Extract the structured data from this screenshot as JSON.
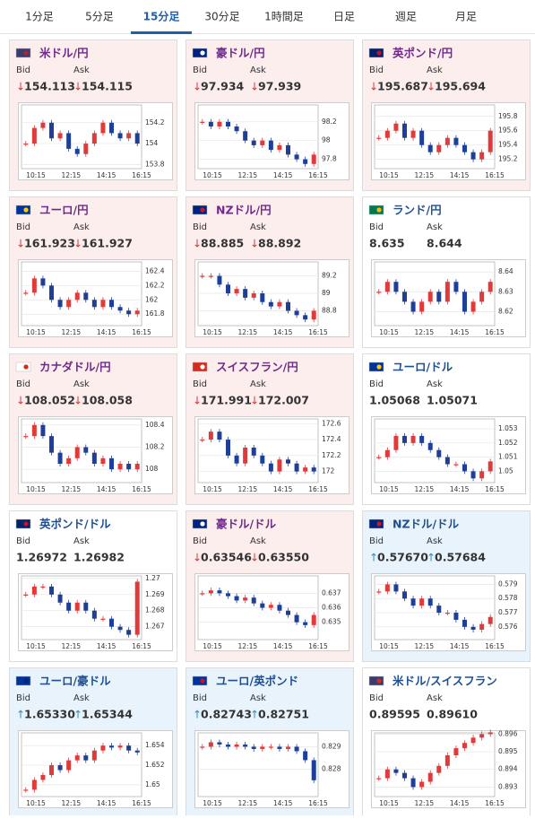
{
  "tabs": {
    "items": [
      "1分足",
      "5分足",
      "15分足",
      "30分足",
      "1時間足",
      "日足",
      "週足",
      "月足"
    ],
    "active": 2
  },
  "labels": {
    "bid": "Bid",
    "ask": "Ask",
    "down": "↓",
    "up": "↑"
  },
  "xticks": [
    "10:15",
    "12:15",
    "14:15",
    "16:15"
  ],
  "cards": [
    {
      "name": "米ドル/円",
      "bid": "154.113",
      "ask": "154.115",
      "trend": "down",
      "flag": [
        "#3c3b6e",
        "#b22234"
      ],
      "ylim": [
        153.76,
        154.37
      ],
      "yticks": [
        154.2,
        154,
        153.8
      ],
      "values": [
        154.0,
        154.15,
        154.2,
        154.05,
        154.1,
        153.95,
        153.9,
        154.0,
        154.1,
        154.2,
        154.1,
        154.05,
        154.1,
        154.0
      ]
    },
    {
      "name": "豪ドル/円",
      "bid": "97.934",
      "ask": "97.939",
      "trend": "down",
      "flag": [
        "#00247d",
        "#ffffff"
      ],
      "ylim": [
        97.7,
        98.38
      ],
      "yticks": [
        98.2,
        98,
        97.8
      ],
      "values": [
        98.2,
        98.15,
        98.2,
        98.15,
        98.1,
        98.0,
        97.95,
        98.0,
        97.9,
        97.95,
        97.85,
        97.8,
        97.75,
        97.85
      ]
    },
    {
      "name": "英ポンド/円",
      "bid": "195.687",
      "ask": "195.694",
      "trend": "down",
      "flag": [
        "#012169",
        "#c8102e"
      ],
      "ylim": [
        195.07,
        195.96
      ],
      "yticks": [
        195.8,
        195.6,
        195.4,
        195.2
      ],
      "values": [
        195.5,
        195.6,
        195.7,
        195.5,
        195.6,
        195.4,
        195.3,
        195.4,
        195.5,
        195.4,
        195.3,
        195.2,
        195.3,
        195.6
      ]
    },
    {
      "name": "ユーロ/円",
      "bid": "161.923",
      "ask": "161.927",
      "trend": "down",
      "flag": [
        "#003399",
        "#ffcc00"
      ],
      "ylim": [
        161.64,
        162.53
      ],
      "yticks": [
        162.4,
        162.2,
        162,
        161.8
      ],
      "values": [
        162.1,
        162.3,
        162.2,
        162.0,
        161.9,
        162.0,
        162.1,
        162.0,
        161.9,
        162.0,
        161.9,
        161.85,
        161.8,
        161.85
      ]
    },
    {
      "name": "NZドル/円",
      "bid": "88.885",
      "ask": "88.892",
      "trend": "down",
      "flag": [
        "#00247d",
        "#cc142b"
      ],
      "ylim": [
        88.63,
        89.36
      ],
      "yticks": [
        89.2,
        89,
        88.8
      ],
      "values": [
        89.2,
        89.2,
        89.1,
        89.0,
        89.05,
        88.95,
        89.0,
        88.9,
        88.85,
        88.9,
        88.8,
        88.75,
        88.7,
        88.8
      ]
    },
    {
      "name": "ランド/円",
      "bid": "8.635",
      "ask": "8.644",
      "trend": null,
      "flag": [
        "#007a4d",
        "#ffb612"
      ],
      "ylim": [
        8.613,
        8.645
      ],
      "yticks": [
        8.64,
        8.63,
        8.62
      ],
      "values": [
        8.63,
        8.635,
        8.63,
        8.625,
        8.62,
        8.625,
        8.63,
        8.625,
        8.635,
        8.63,
        8.62,
        8.625,
        8.63,
        8.635
      ]
    },
    {
      "name": "カナダドル/円",
      "bid": "108.052",
      "ask": "108.058",
      "trend": "down",
      "flag": [
        "#ffffff",
        "#d52b1e"
      ],
      "ylim": [
        107.88,
        108.455
      ],
      "yticks": [
        108.4,
        108.2,
        108
      ],
      "values": [
        108.3,
        108.4,
        108.3,
        108.15,
        108.05,
        108.1,
        108.2,
        108.15,
        108.05,
        108.1,
        108.0,
        108.05,
        108.0,
        108.05
      ]
    },
    {
      "name": "スイスフラン/円",
      "bid": "171.991",
      "ask": "172.007",
      "trend": "down",
      "flag": [
        "#d52b1e",
        "#ffffff"
      ],
      "ylim": [
        171.86,
        172.66
      ],
      "yticks": [
        172.6,
        172.4,
        172.2,
        172
      ],
      "values": [
        172.4,
        172.5,
        172.4,
        172.2,
        172.1,
        172.3,
        172.2,
        172.1,
        172.0,
        172.15,
        172.1,
        172.0,
        172.05,
        172.0
      ]
    },
    {
      "name": "ユーロ/ドル",
      "bid": "1.05068",
      "ask": "1.05071",
      "trend": null,
      "flag": [
        "#003399",
        "#ffcc00"
      ],
      "ylim": [
        1.0492,
        1.0537
      ],
      "yticks": [
        1.053,
        1.052,
        1.051,
        1.05
      ],
      "values": [
        1.051,
        1.0515,
        1.0525,
        1.052,
        1.0525,
        1.052,
        1.0515,
        1.051,
        1.0505,
        1.0505,
        1.05,
        1.0495,
        1.05,
        1.0507
      ]
    },
    {
      "name": "英ポンド/ドル",
      "bid": "1.26972",
      "ask": "1.26982",
      "trend": null,
      "flag": [
        "#012169",
        "#c8102e"
      ],
      "ylim": [
        1.2662,
        1.27016
      ],
      "yticks": [
        1.27,
        1.269,
        1.268,
        1.267
      ],
      "values": [
        1.269,
        1.2695,
        1.2695,
        1.269,
        1.2685,
        1.268,
        1.2685,
        1.268,
        1.2675,
        1.2675,
        1.267,
        1.2668,
        1.2665,
        1.2698
      ]
    },
    {
      "name": "豪ドル/ドル",
      "bid": "0.63546",
      "ask": "0.63550",
      "trend": "down",
      "flag": [
        "#00247d",
        "#ffffff"
      ],
      "ylim": [
        0.6338,
        0.6382
      ],
      "yticks": [
        0.637,
        0.636,
        0.635
      ],
      "values": [
        0.637,
        0.6372,
        0.637,
        0.6368,
        0.6365,
        0.6367,
        0.6363,
        0.636,
        0.6362,
        0.6358,
        0.6355,
        0.635,
        0.6348,
        0.6355
      ]
    },
    {
      "name": "NZドル/ドル",
      "bid": "0.57670",
      "ask": "0.57684",
      "trend": "up",
      "flag": [
        "#00247d",
        "#cc142b"
      ],
      "ylim": [
        0.5751,
        0.5796
      ],
      "yticks": [
        0.579,
        0.578,
        0.577,
        0.576
      ],
      "values": [
        0.5785,
        0.579,
        0.5785,
        0.578,
        0.5775,
        0.578,
        0.5775,
        0.577,
        0.577,
        0.5765,
        0.576,
        0.5758,
        0.5762,
        0.5767
      ]
    },
    {
      "name": "ユーロ/豪ドル",
      "bid": "1.65330",
      "ask": "1.65344",
      "trend": "up",
      "flag": [
        "#003399",
        "#00247d"
      ],
      "ylim": [
        1.6488,
        1.6553
      ],
      "yticks": [
        1.654,
        1.652,
        1.65
      ],
      "values": [
        1.6495,
        1.6505,
        1.651,
        1.652,
        1.6515,
        1.6525,
        1.653,
        1.6525,
        1.6535,
        1.654,
        1.6538,
        1.654,
        1.6535,
        1.6533
      ]
    },
    {
      "name": "ユーロ/英ポンド",
      "bid": "0.82743",
      "ask": "0.82751",
      "trend": "up",
      "flag": [
        "#003399",
        "#c8102e"
      ],
      "ylim": [
        0.82677,
        0.82962
      ],
      "yticks": [
        0.829,
        0.828
      ],
      "values": [
        0.829,
        0.8292,
        0.8291,
        0.829,
        0.8291,
        0.829,
        0.8289,
        0.829,
        0.829,
        0.8289,
        0.829,
        0.8288,
        0.8284,
        0.8275
      ]
    },
    {
      "name": "米ドル/スイスフラン",
      "bid": "0.89595",
      "ask": "0.89610",
      "trend": null,
      "flag": [
        "#3c3b6e",
        "#d52b1e"
      ],
      "ylim": [
        0.89246,
        0.89607
      ],
      "yticks": [
        0.896,
        0.895,
        0.894,
        0.893
      ],
      "values": [
        0.8935,
        0.894,
        0.8938,
        0.8935,
        0.893,
        0.8933,
        0.8938,
        0.8942,
        0.8948,
        0.8952,
        0.8955,
        0.8958,
        0.896,
        0.8961
      ]
    }
  ]
}
